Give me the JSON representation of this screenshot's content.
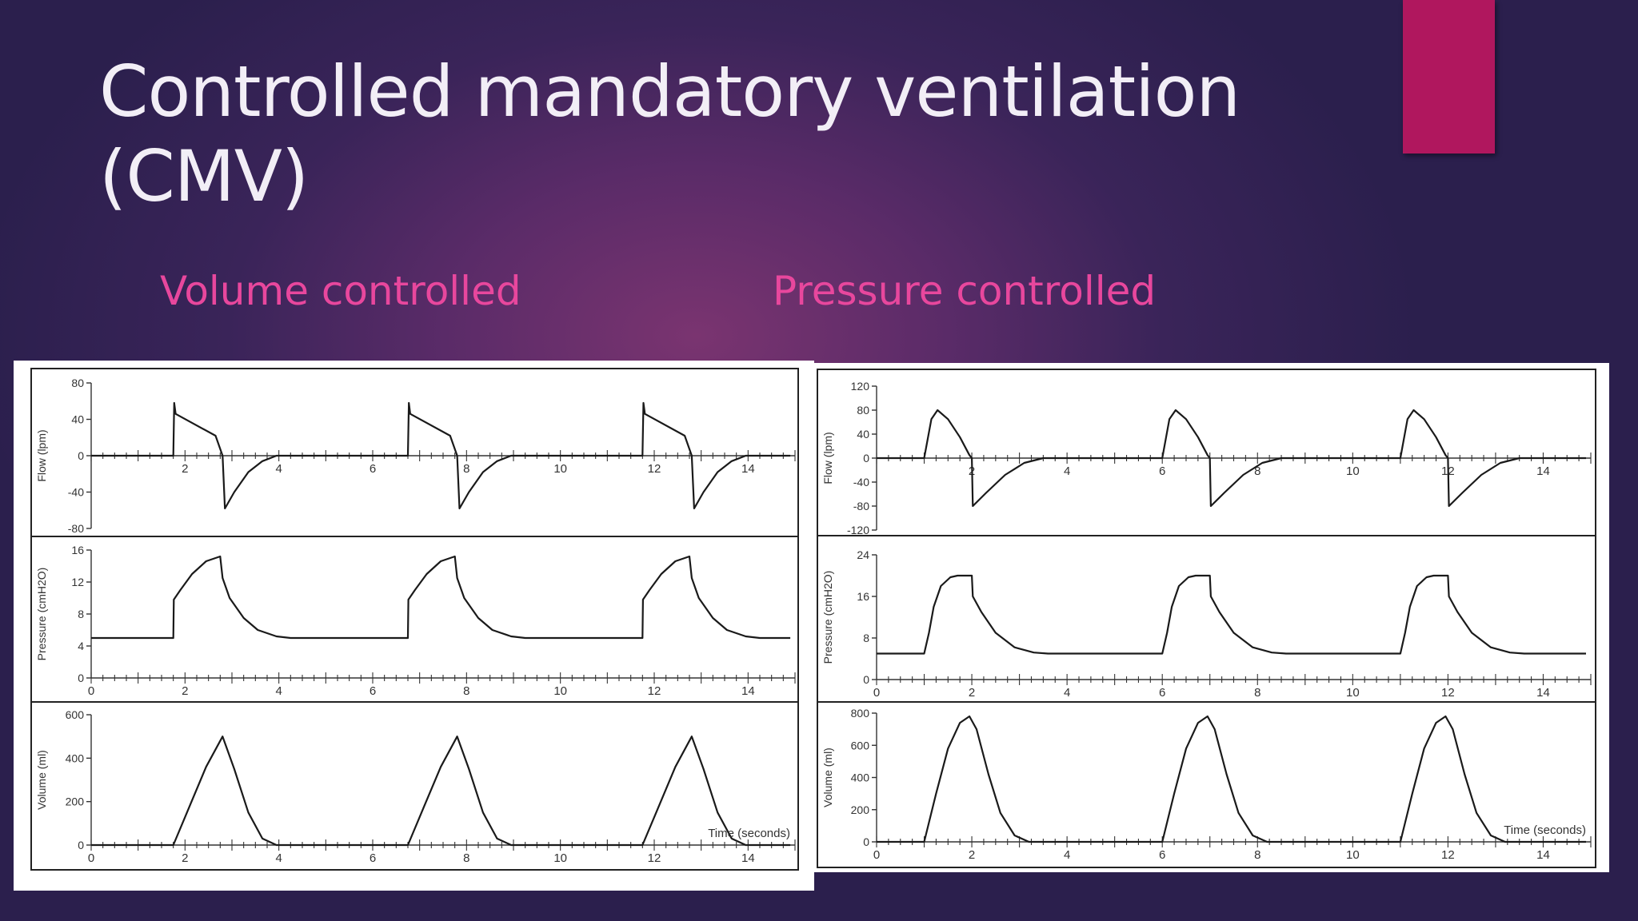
{
  "slide": {
    "title": "Controlled mandatory ventilation (CMV)",
    "accent_color": "#b0175e",
    "left_heading": "Volume controlled",
    "right_heading": "Pressure controlled"
  },
  "chart_data": [
    {
      "type": "line",
      "panel": "Volume controlled",
      "x_tick_labels": [
        "0",
        "2",
        "4",
        "6",
        "8",
        "10",
        "12",
        "14"
      ],
      "xlabel": "Time (seconds)",
      "xlim": [
        0,
        15
      ],
      "breath_starts": [
        1.75,
        6.75,
        11.75
      ],
      "subplots": [
        {
          "name": "flow",
          "ylabel": "Flow (lpm)",
          "ylim": [
            -80,
            80
          ],
          "y_tick_labels": [
            "80",
            "40",
            "0",
            "-40",
            "-80"
          ],
          "x_tick_labels": [
            "2",
            "4",
            "6",
            "8",
            "10",
            "12",
            "14"
          ],
          "breath_points": [
            [
              0,
              0
            ],
            [
              0.02,
              58
            ],
            [
              0.05,
              46
            ],
            [
              0.9,
              22
            ],
            [
              1.05,
              0
            ],
            [
              1.1,
              -58
            ],
            [
              1.3,
              -40
            ],
            [
              1.6,
              -18
            ],
            [
              1.9,
              -6
            ],
            [
              2.2,
              0
            ]
          ]
        },
        {
          "name": "pressure",
          "ylabel": "Pressure (cmH2O)",
          "ylim": [
            0,
            16
          ],
          "y_tick_labels": [
            "16",
            "12",
            "8",
            "4",
            "0"
          ],
          "baseline": 5,
          "breath_points": [
            [
              0,
              5
            ],
            [
              0.01,
              9.8
            ],
            [
              0.15,
              11
            ],
            [
              0.4,
              13
            ],
            [
              0.7,
              14.6
            ],
            [
              1.0,
              15.2
            ],
            [
              1.05,
              12.5
            ],
            [
              1.2,
              10
            ],
            [
              1.5,
              7.5
            ],
            [
              1.8,
              6
            ],
            [
              2.2,
              5.2
            ],
            [
              2.5,
              5
            ]
          ]
        },
        {
          "name": "volume",
          "ylabel": "Volume (ml)",
          "ylim": [
            0,
            600
          ],
          "y_tick_labels": [
            "600",
            "400",
            "200",
            "0"
          ],
          "breath_points": [
            [
              0,
              0
            ],
            [
              0.35,
              180
            ],
            [
              0.7,
              360
            ],
            [
              1.05,
              500
            ],
            [
              1.3,
              350
            ],
            [
              1.6,
              150
            ],
            [
              1.9,
              30
            ],
            [
              2.2,
              0
            ]
          ]
        }
      ]
    },
    {
      "type": "line",
      "panel": "Pressure controlled",
      "x_tick_labels": [
        "0",
        "2",
        "4",
        "6",
        "8",
        "10",
        "12",
        "14"
      ],
      "xlabel": "Time (seconds)",
      "xlim": [
        0,
        15
      ],
      "breath_starts": [
        1.0,
        6.0,
        11.0
      ],
      "subplots": [
        {
          "name": "flow",
          "ylabel": "Flow (lpm)",
          "ylim": [
            -120,
            120
          ],
          "y_tick_labels": [
            "120",
            "80",
            "40",
            "0",
            "-40",
            "-80",
            "-120"
          ],
          "x_tick_labels": [
            "2",
            "4",
            "6",
            "8",
            "10",
            "12",
            "14"
          ],
          "breath_points": [
            [
              0,
              0
            ],
            [
              0.15,
              65
            ],
            [
              0.28,
              80
            ],
            [
              0.5,
              65
            ],
            [
              0.75,
              35
            ],
            [
              0.95,
              5
            ],
            [
              1.0,
              0
            ],
            [
              1.02,
              -80
            ],
            [
              1.3,
              -58
            ],
            [
              1.7,
              -28
            ],
            [
              2.1,
              -8
            ],
            [
              2.5,
              0
            ]
          ]
        },
        {
          "name": "pressure",
          "ylabel": "Pressure (cmH2O)",
          "ylim": [
            0,
            24
          ],
          "y_tick_labels": [
            "24",
            "16",
            "8",
            "0"
          ],
          "baseline": 5,
          "breath_points": [
            [
              0,
              5
            ],
            [
              0.1,
              9
            ],
            [
              0.2,
              14
            ],
            [
              0.35,
              18
            ],
            [
              0.55,
              19.7
            ],
            [
              0.7,
              20
            ],
            [
              1.0,
              20
            ],
            [
              1.02,
              16
            ],
            [
              1.2,
              13
            ],
            [
              1.5,
              9
            ],
            [
              1.9,
              6.2
            ],
            [
              2.3,
              5.2
            ],
            [
              2.6,
              5
            ]
          ]
        },
        {
          "name": "volume",
          "ylabel": "Volume (ml)",
          "ylim": [
            0,
            800
          ],
          "y_tick_labels": [
            "800",
            "600",
            "400",
            "200",
            "0"
          ],
          "breath_points": [
            [
              0,
              0
            ],
            [
              0.25,
              300
            ],
            [
              0.5,
              580
            ],
            [
              0.75,
              740
            ],
            [
              0.95,
              780
            ],
            [
              1.1,
              700
            ],
            [
              1.35,
              420
            ],
            [
              1.6,
              180
            ],
            [
              1.9,
              40
            ],
            [
              2.2,
              0
            ]
          ]
        }
      ]
    }
  ]
}
